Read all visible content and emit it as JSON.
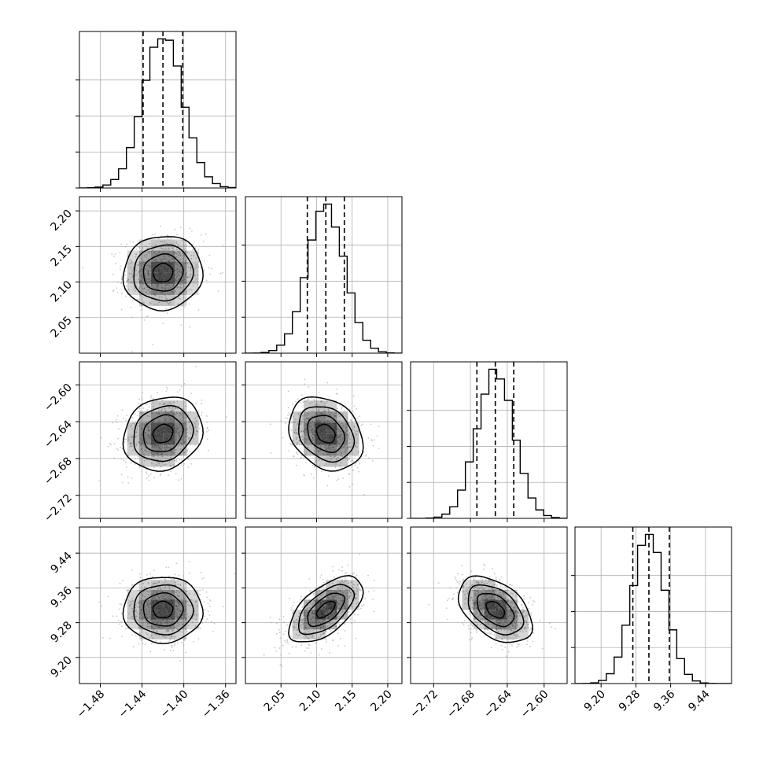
{
  "chart_data": {
    "type": "corner",
    "grid": true,
    "parameters": [
      {
        "range": [
          -1.5,
          -1.35
        ],
        "ticks": [
          -1.48,
          -1.44,
          -1.4,
          -1.36
        ],
        "tick_labels": [
          "−1.48",
          "−1.44",
          "−1.40",
          "−1.36"
        ],
        "mean": -1.42,
        "std": 0.019,
        "quantiles": [
          -1.439,
          -1.42,
          -1.401
        ],
        "hist_peak_scale": 1.0
      },
      {
        "range": [
          2.0,
          2.22
        ],
        "ticks": [
          2.05,
          2.1,
          2.15,
          2.2
        ],
        "tick_labels": [
          "2.05",
          "2.10",
          "2.15",
          "2.20"
        ],
        "mean": 2.113,
        "std": 0.026,
        "quantiles": [
          2.087,
          2.113,
          2.139
        ],
        "hist_peak_scale": 1.0
      },
      {
        "range": [
          -2.745,
          -2.575
        ],
        "ticks": [
          -2.72,
          -2.68,
          -2.64,
          -2.6
        ],
        "tick_labels": [
          "−2.72",
          "−2.68",
          "−2.64",
          "−2.60"
        ],
        "mean": -2.653,
        "std": 0.02,
        "quantiles": [
          -2.673,
          -2.653,
          -2.633
        ],
        "hist_peak_scale": 1.0
      },
      {
        "range": [
          9.14,
          9.5
        ],
        "ticks": [
          9.2,
          9.28,
          9.36,
          9.44
        ],
        "tick_labels": [
          "9.20",
          "9.28",
          "9.36",
          "9.44"
        ],
        "mean": 9.31,
        "std": 0.038,
        "quantiles": [
          9.273,
          9.31,
          9.357
        ],
        "hist_peak_scale": 1.0
      }
    ],
    "correlations": [
      {
        "i": 1,
        "j": 0,
        "rho": 0.05
      },
      {
        "i": 2,
        "j": 0,
        "rho": 0.15
      },
      {
        "i": 2,
        "j": 1,
        "rho": -0.25
      },
      {
        "i": 3,
        "j": 0,
        "rho": 0.0
      },
      {
        "i": 3,
        "j": 1,
        "rho": 0.6
      },
      {
        "i": 3,
        "j": 2,
        "rho": -0.45
      }
    ],
    "contour_levels_sigma": [
      0.5,
      1.0,
      1.5,
      2.0
    ],
    "colors": {
      "line": "#000000",
      "scatter": "#9a9a9a",
      "density": "#000000"
    }
  }
}
